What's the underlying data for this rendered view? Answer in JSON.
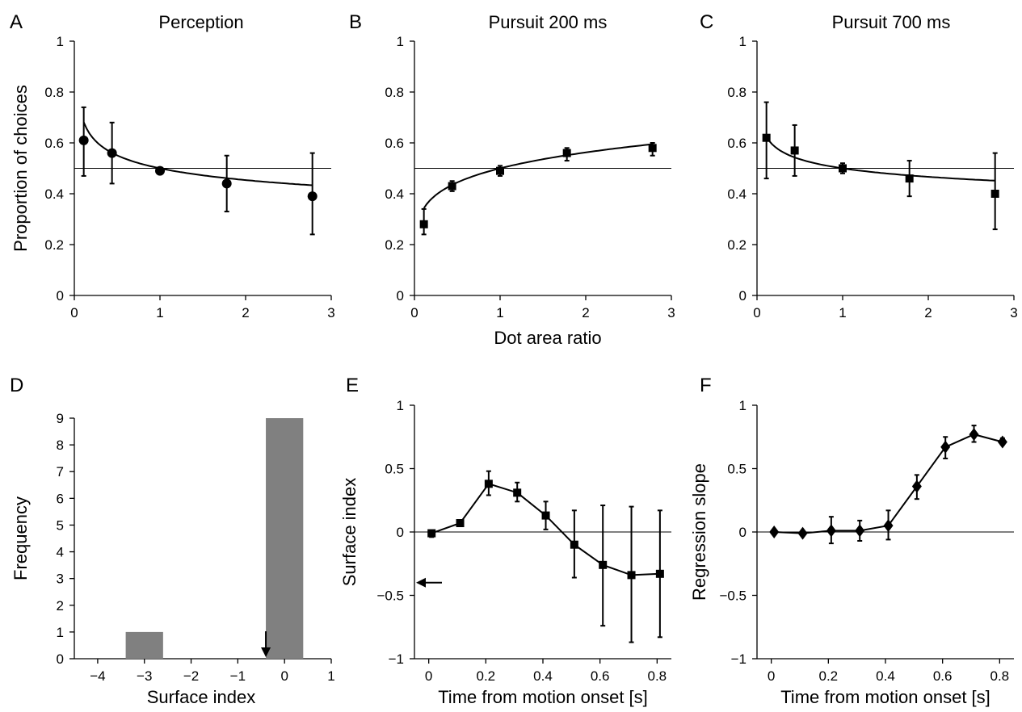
{
  "figure": {
    "panel_letters": [
      "A",
      "B",
      "C",
      "D",
      "E",
      "F"
    ],
    "shared_xlabel_top_row": "Dot area ratio"
  },
  "chart_data": [
    {
      "panel": "A",
      "type": "line",
      "title": "Perception",
      "xlabel": "",
      "ylabel": "Proportion of choices",
      "xlim": [
        0,
        3
      ],
      "ylim": [
        0,
        1
      ],
      "xticks": [
        "0",
        "1",
        "2",
        "3"
      ],
      "yticks": [
        "0",
        "0.2",
        "0.4",
        "0.6",
        "0.8",
        "1"
      ],
      "reference_y": 0.5,
      "marker": "circle",
      "x": [
        0.11,
        0.44,
        1.0,
        1.78,
        2.78
      ],
      "y": [
        0.61,
        0.56,
        0.49,
        0.44,
        0.39
      ],
      "err_low": [
        0.47,
        0.44,
        0.49,
        0.33,
        0.24
      ],
      "err_high": [
        0.74,
        0.68,
        0.49,
        0.55,
        0.56
      ],
      "fit": {
        "type": "power",
        "anchor": [
          1,
          0.5
        ],
        "exponent": -0.14,
        "x_from": 0.11,
        "x_to": 2.78
      }
    },
    {
      "panel": "B",
      "type": "line",
      "title": "Pursuit 200 ms",
      "xlabel": "Dot area ratio",
      "ylabel": "",
      "xlim": [
        0,
        3
      ],
      "ylim": [
        0,
        1
      ],
      "xticks": [
        "0",
        "1",
        "2",
        "3"
      ],
      "yticks": [
        "0",
        "0.2",
        "0.4",
        "0.6",
        "0.8",
        "1"
      ],
      "reference_y": 0.5,
      "marker": "square",
      "x": [
        0.11,
        0.44,
        1.0,
        1.78,
        2.78
      ],
      "y": [
        0.28,
        0.43,
        0.49,
        0.56,
        0.58
      ],
      "err_low": [
        0.24,
        0.41,
        0.47,
        0.53,
        0.55
      ],
      "err_high": [
        0.34,
        0.45,
        0.51,
        0.58,
        0.6
      ],
      "fit": {
        "type": "power",
        "anchor": [
          1,
          0.5
        ],
        "exponent": 0.17,
        "x_from": 0.11,
        "x_to": 2.78
      }
    },
    {
      "panel": "C",
      "type": "line",
      "title": "Pursuit 700 ms",
      "xlabel": "",
      "ylabel": "",
      "xlim": [
        0,
        3
      ],
      "ylim": [
        0,
        1
      ],
      "xticks": [
        "0",
        "1",
        "2",
        "3"
      ],
      "yticks": [
        "0",
        "0.2",
        "0.4",
        "0.6",
        "0.8",
        "1"
      ],
      "reference_y": 0.5,
      "marker": "square",
      "x": [
        0.11,
        0.44,
        1.0,
        1.78,
        2.78
      ],
      "y": [
        0.62,
        0.57,
        0.5,
        0.46,
        0.4
      ],
      "err_low": [
        0.46,
        0.47,
        0.48,
        0.39,
        0.26
      ],
      "err_high": [
        0.76,
        0.67,
        0.52,
        0.53,
        0.56
      ],
      "fit": {
        "type": "power",
        "anchor": [
          1,
          0.5
        ],
        "exponent": -0.1,
        "x_from": 0.11,
        "x_to": 2.78
      }
    },
    {
      "panel": "D",
      "type": "bar",
      "title": "",
      "xlabel": "Surface index",
      "ylabel": "Frequency",
      "xlim": [
        -4.5,
        1
      ],
      "ylim": [
        0,
        9
      ],
      "xticks": [
        "−4",
        "−3",
        "−2",
        "−1",
        "0",
        "1"
      ],
      "yticks": [
        "0",
        "1",
        "2",
        "3",
        "4",
        "5",
        "6",
        "7",
        "8",
        "9"
      ],
      "bars": [
        {
          "x0": -3.4,
          "x1": -2.6,
          "value": 1
        },
        {
          "x0": -0.4,
          "x1": 0.4,
          "value": 9
        }
      ],
      "bar_color": "#808080",
      "arrow_x": -0.4
    },
    {
      "panel": "E",
      "type": "line",
      "title": "",
      "xlabel": "Time from motion onset [s]",
      "ylabel": "Surface index",
      "xlim": [
        -0.05,
        0.85
      ],
      "ylim": [
        -1,
        1
      ],
      "xticks": [
        "0",
        "0.2",
        "0.4",
        "0.6",
        "0.8"
      ],
      "yticks": [
        "−1",
        "−0.5",
        "0",
        "0.5",
        "1"
      ],
      "reference_y": 0,
      "marker": "square",
      "x": [
        0.01,
        0.11,
        0.21,
        0.31,
        0.41,
        0.51,
        0.61,
        0.71,
        0.81
      ],
      "y": [
        -0.01,
        0.07,
        0.38,
        0.31,
        0.13,
        -0.1,
        -0.26,
        -0.34,
        -0.33
      ],
      "err_low": [
        -0.04,
        0.05,
        0.29,
        0.24,
        0.02,
        -0.36,
        -0.74,
        -0.87,
        -0.83
      ],
      "err_high": [
        0.01,
        0.09,
        0.48,
        0.39,
        0.24,
        0.17,
        0.21,
        0.2,
        0.17
      ],
      "arrow_y": -0.4
    },
    {
      "panel": "F",
      "type": "line",
      "title": "",
      "xlabel": "Time from motion onset [s]",
      "ylabel": "Regression slope",
      "xlim": [
        -0.05,
        0.85
      ],
      "ylim": [
        -1,
        1
      ],
      "xticks": [
        "0",
        "0.2",
        "0.4",
        "0.6",
        "0.8"
      ],
      "yticks": [
        "−1",
        "−0.5",
        "0",
        "0.5",
        "1"
      ],
      "reference_y": 0,
      "marker": "diamond",
      "x": [
        0.01,
        0.11,
        0.21,
        0.31,
        0.41,
        0.51,
        0.61,
        0.71,
        0.81
      ],
      "y": [
        0.0,
        -0.01,
        0.01,
        0.01,
        0.05,
        0.36,
        0.67,
        0.77,
        0.71
      ],
      "err_low": [
        0.0,
        -0.01,
        -0.09,
        -0.07,
        -0.06,
        0.26,
        0.58,
        0.71,
        0.69
      ],
      "err_high": [
        0.0,
        -0.01,
        0.12,
        0.09,
        0.17,
        0.45,
        0.75,
        0.84,
        0.74
      ]
    }
  ]
}
